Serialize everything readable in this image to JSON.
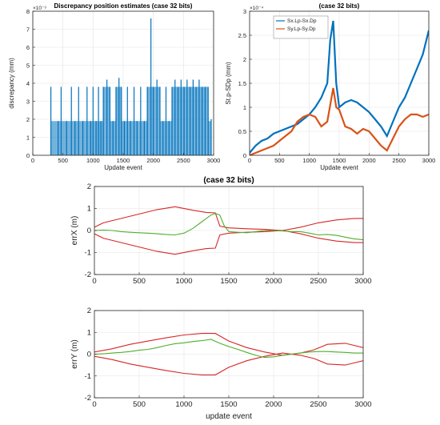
{
  "chart_data": [
    {
      "id": "discrepancy",
      "type": "bar",
      "title": "Discrepancy position estimates (case 32 bits)",
      "xlabel": "Update event",
      "ylabel": "discrepancy (mm)",
      "y_exponent_label": "×10⁻³",
      "xlim": [
        0,
        3000
      ],
      "ylim": [
        0,
        8
      ],
      "xticks": [
        0,
        500,
        1000,
        1500,
        2000,
        2500,
        3000
      ],
      "yticks": [
        0,
        1,
        2,
        3,
        4,
        5,
        6,
        7,
        8
      ],
      "grid": true,
      "series": [
        {
          "color": "#0072BD",
          "values_note": "spikes at discrete levels",
          "spikes": [
            [
              300,
              3.8
            ],
            [
              420,
              1.9
            ],
            [
              470,
              3.8
            ],
            [
              560,
              1.9
            ],
            [
              640,
              3.8
            ],
            [
              700,
              1.9
            ],
            [
              760,
              3.8
            ],
            [
              830,
              1.9
            ],
            [
              900,
              3.8
            ],
            [
              960,
              1.9
            ],
            [
              1000,
              3.8
            ],
            [
              1050,
              1.9
            ],
            [
              1090,
              3.8
            ],
            [
              1130,
              1.9
            ],
            [
              1170,
              3.8
            ],
            [
              1230,
              4.2
            ],
            [
              1280,
              3.8
            ],
            [
              1330,
              1.9
            ],
            [
              1380,
              3.8
            ],
            [
              1430,
              4.3
            ],
            [
              1470,
              3.8
            ],
            [
              1520,
              1.9
            ],
            [
              1570,
              3.8
            ],
            [
              1620,
              1.9
            ],
            [
              1680,
              3.8
            ],
            [
              1730,
              1.9
            ],
            [
              1790,
              3.8
            ],
            [
              1850,
              1.9
            ],
            [
              1900,
              3.8
            ],
            [
              1960,
              7.6
            ],
            [
              2000,
              3.8
            ],
            [
              2060,
              4.2
            ],
            [
              2110,
              3.8
            ],
            [
              2160,
              1.9
            ],
            [
              2210,
              3.8
            ],
            [
              2260,
              1.9
            ],
            [
              2310,
              3.8
            ],
            [
              2360,
              4.2
            ],
            [
              2410,
              3.8
            ],
            [
              2460,
              4.2
            ],
            [
              2510,
              3.8
            ],
            [
              2560,
              4.2
            ],
            [
              2610,
              3.8
            ],
            [
              2660,
              4.2
            ],
            [
              2710,
              3.8
            ],
            [
              2760,
              4.2
            ],
            [
              2810,
              3.8
            ],
            [
              2860,
              3.8
            ],
            [
              2910,
              3.8
            ],
            [
              2960,
              2.0
            ]
          ]
        }
      ]
    },
    {
      "id": "stdp",
      "type": "line",
      "title": "(case 32 bits)",
      "xlabel": "Update event",
      "ylabel": "St.p-SDp (mm)",
      "y_exponent_label": "×10⁻⁴",
      "xlim": [
        0,
        3000
      ],
      "ylim": [
        0,
        3
      ],
      "xticks": [
        0,
        500,
        1000,
        1500,
        2000,
        2500,
        3000
      ],
      "yticks": [
        0,
        0.5,
        1,
        1.5,
        2,
        2.5,
        3
      ],
      "grid": true,
      "legend_position": "top-left",
      "series": [
        {
          "name": "Sx.Lp-Sx.Dp",
          "color": "#0072BD",
          "x": [
            0,
            100,
            200,
            300,
            400,
            500,
            600,
            700,
            800,
            900,
            1000,
            1100,
            1200,
            1300,
            1350,
            1400,
            1450,
            1500,
            1600,
            1700,
            1800,
            1900,
            2000,
            2100,
            2200,
            2300,
            2400,
            2500,
            2600,
            2700,
            2800,
            2900,
            3000
          ],
          "y": [
            0.05,
            0.2,
            0.3,
            0.35,
            0.45,
            0.5,
            0.55,
            0.6,
            0.65,
            0.75,
            0.85,
            1.0,
            1.2,
            1.5,
            2.4,
            2.8,
            1.5,
            1.0,
            1.1,
            1.15,
            1.1,
            1.0,
            0.9,
            0.75,
            0.6,
            0.4,
            0.7,
            1.0,
            1.2,
            1.5,
            1.8,
            2.1,
            2.6
          ]
        },
        {
          "name": "Sy.Lp-Sy.Dp",
          "color": "#D95319",
          "x": [
            0,
            100,
            200,
            300,
            400,
            500,
            600,
            700,
            800,
            900,
            1000,
            1100,
            1200,
            1300,
            1400,
            1450,
            1500,
            1600,
            1700,
            1800,
            1900,
            2000,
            2100,
            2200,
            2300,
            2400,
            2500,
            2600,
            2700,
            2800,
            2900,
            3000
          ],
          "y": [
            0.0,
            0.05,
            0.1,
            0.15,
            0.2,
            0.3,
            0.4,
            0.5,
            0.7,
            0.8,
            0.85,
            0.8,
            0.6,
            0.7,
            1.4,
            1.0,
            0.95,
            0.6,
            0.55,
            0.45,
            0.55,
            0.5,
            0.35,
            0.2,
            0.1,
            0.35,
            0.6,
            0.75,
            0.85,
            0.85,
            0.8,
            0.85
          ]
        }
      ]
    },
    {
      "id": "errX",
      "type": "line",
      "title": "(case 32 bits)",
      "xlabel": "",
      "ylabel": "errX (m)",
      "xlim": [
        0,
        3000
      ],
      "ylim": [
        -2,
        2
      ],
      "xticks": [
        0,
        500,
        1000,
        1500,
        2000,
        2500,
        3000
      ],
      "yticks": [
        -2,
        -1,
        0,
        1,
        2
      ],
      "grid": true,
      "series": [
        {
          "color": "#D62728",
          "x": [
            0,
            100,
            300,
            500,
            700,
            900,
            1100,
            1250,
            1350,
            1400,
            1500,
            1700,
            1900,
            2100,
            2300,
            2500,
            2700,
            2900,
            3000
          ],
          "y": [
            0.15,
            0.35,
            0.55,
            0.75,
            0.95,
            1.08,
            0.92,
            0.82,
            0.8,
            0.2,
            0.12,
            0.08,
            0.05,
            0.0,
            0.15,
            0.35,
            0.48,
            0.55,
            0.55
          ]
        },
        {
          "color": "#D62728",
          "x": [
            0,
            100,
            300,
            500,
            700,
            900,
            1100,
            1250,
            1350,
            1400,
            1500,
            1700,
            1900,
            2100,
            2300,
            2500,
            2700,
            2900,
            3000
          ],
          "y": [
            -0.15,
            -0.35,
            -0.55,
            -0.75,
            -0.95,
            -1.08,
            -0.92,
            -0.82,
            -0.8,
            -0.2,
            -0.12,
            -0.08,
            -0.05,
            0.0,
            -0.15,
            -0.35,
            -0.48,
            -0.55,
            -0.55
          ]
        },
        {
          "color": "#4DAF2A",
          "x": [
            0,
            100,
            200,
            300,
            400,
            500,
            600,
            700,
            800,
            900,
            1000,
            1100,
            1200,
            1300,
            1350,
            1400,
            1450,
            1500,
            1600,
            1700,
            1800,
            1900,
            2000,
            2100,
            2200,
            2300,
            2400,
            2500,
            2600,
            2700,
            2800,
            2900,
            3000
          ],
          "y": [
            0.0,
            0.02,
            0.0,
            -0.05,
            -0.08,
            -0.1,
            -0.12,
            -0.15,
            -0.18,
            -0.2,
            -0.12,
            0.1,
            0.4,
            0.7,
            0.78,
            0.7,
            0.2,
            -0.05,
            -0.08,
            -0.1,
            -0.05,
            0.0,
            0.0,
            -0.02,
            -0.05,
            -0.05,
            -0.12,
            -0.2,
            -0.18,
            -0.22,
            -0.3,
            -0.38,
            -0.42
          ]
        }
      ]
    },
    {
      "id": "errY",
      "type": "line",
      "title": "",
      "xlabel": "update event",
      "ylabel": "errY (m)",
      "xlim": [
        0,
        3000
      ],
      "ylim": [
        -2,
        2
      ],
      "xticks": [
        0,
        500,
        1000,
        1500,
        2000,
        2500,
        3000
      ],
      "yticks": [
        -2,
        -1,
        0,
        1,
        2
      ],
      "grid": true,
      "series": [
        {
          "color": "#D62728",
          "x": [
            0,
            200,
            400,
            600,
            800,
            1000,
            1200,
            1350,
            1500,
            1700,
            1900,
            2100,
            2300,
            2450,
            2600,
            2800,
            3000
          ],
          "y": [
            0.1,
            0.25,
            0.45,
            0.6,
            0.75,
            0.88,
            0.95,
            0.95,
            0.6,
            0.3,
            0.1,
            -0.05,
            0.05,
            0.2,
            0.45,
            0.5,
            0.3
          ]
        },
        {
          "color": "#D62728",
          "x": [
            0,
            200,
            400,
            600,
            800,
            1000,
            1200,
            1350,
            1500,
            1700,
            1900,
            2100,
            2300,
            2450,
            2600,
            2800,
            3000
          ],
          "y": [
            -0.1,
            -0.25,
            -0.45,
            -0.6,
            -0.75,
            -0.88,
            -0.95,
            -0.95,
            -0.6,
            -0.3,
            -0.1,
            0.05,
            -0.05,
            -0.2,
            -0.45,
            -0.5,
            -0.3
          ]
        },
        {
          "color": "#4DAF2A",
          "x": [
            0,
            100,
            200,
            300,
            400,
            500,
            600,
            700,
            800,
            900,
            1000,
            1100,
            1200,
            1300,
            1400,
            1500,
            1600,
            1700,
            1800,
            1900,
            2000,
            2100,
            2200,
            2300,
            2400,
            2500,
            2600,
            2700,
            2800,
            2900,
            3000
          ],
          "y": [
            0.0,
            0.02,
            0.05,
            0.08,
            0.12,
            0.18,
            0.22,
            0.3,
            0.4,
            0.48,
            0.52,
            0.58,
            0.62,
            0.68,
            0.5,
            0.35,
            0.22,
            0.08,
            -0.05,
            -0.15,
            -0.12,
            -0.05,
            0.0,
            0.05,
            0.1,
            0.12,
            0.12,
            0.1,
            0.08,
            0.05,
            0.05
          ]
        }
      ]
    }
  ]
}
